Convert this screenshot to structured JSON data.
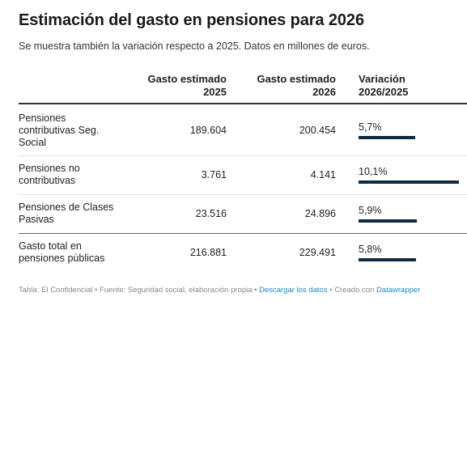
{
  "title": "Estimación del gasto en pensiones para 2026",
  "subtitle": "Se muestra también la variación respecto a 2025. Datos en millones de euros.",
  "headers": {
    "col2025_line1": "Gasto estimado",
    "col2025_line2": "2025",
    "col2026_line1": "Gasto estimado",
    "col2026_line2": "2026",
    "colvar_line1": "Variación",
    "colvar_line2": "2026/2025"
  },
  "chart_data": {
    "type": "table",
    "columns": [
      "",
      "Gasto estimado 2025",
      "Gasto estimado 2026",
      "Variación 2026/2025"
    ],
    "rows": [
      {
        "label": [
          "Pensiones",
          "contributivas Seg.",
          "Social"
        ],
        "g2025": "189.604",
        "g2026": "200.454",
        "variation": "5,7%",
        "variation_value": 5.7
      },
      {
        "label": [
          "Pensiones no",
          "contributivas"
        ],
        "g2025": "3.761",
        "g2026": "4.141",
        "variation": "10,1%",
        "variation_value": 10.1
      },
      {
        "label": [
          "Pensiones de Clases",
          "Pasivas"
        ],
        "g2025": "23.516",
        "g2026": "24.896",
        "variation": "5,9%",
        "variation_value": 5.9
      },
      {
        "label": [
          "Gasto total en",
          "pensiones públicas"
        ],
        "g2025": "216.881",
        "g2026": "229.491",
        "variation": "5,8%",
        "variation_value": 5.8
      }
    ],
    "bar_max": 10.1,
    "bar_color": "#0f2a3d"
  },
  "footer": {
    "prefix": "Tabla: El Confidencial • Fuente: Seguridad social, elaboración propia • ",
    "download": "Descargar los datos",
    "middle": " • Creado con ",
    "tool": "Datawrapper"
  }
}
